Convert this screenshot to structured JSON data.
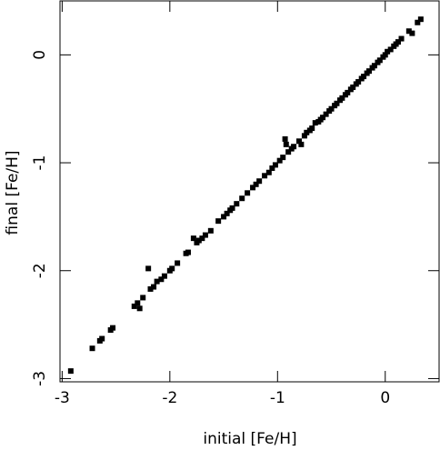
{
  "chart_data": {
    "type": "scatter",
    "xlabel": "initial [Fe/H]",
    "ylabel": "final [Fe/H]",
    "color": "#000000",
    "xlim": [
      -3.02,
      0.5
    ],
    "ylim": [
      -3.03,
      0.5
    ],
    "xticks": [
      -3,
      -2,
      -1,
      0
    ],
    "yticks": [
      -3,
      -2,
      -1,
      0
    ],
    "x": [
      -2.92,
      -2.72,
      -2.65,
      -2.63,
      -2.55,
      -2.53,
      -2.33,
      -2.3,
      -2.28,
      -2.25,
      -2.2,
      -2.18,
      -2.15,
      -2.12,
      -2.08,
      -2.05,
      -2.0,
      -1.98,
      -1.93,
      -1.85,
      -1.83,
      -1.78,
      -1.75,
      -1.73,
      -1.7,
      -1.67,
      -1.62,
      -1.55,
      -1.5,
      -1.47,
      -1.44,
      -1.42,
      -1.38,
      -1.33,
      -1.28,
      -1.23,
      -1.2,
      -1.17,
      -1.12,
      -1.08,
      -1.05,
      -1.02,
      -0.98,
      -0.95,
      -0.93,
      -0.92,
      -0.9,
      -0.87,
      -0.85,
      -0.8,
      -0.78,
      -0.75,
      -0.73,
      -0.7,
      -0.68,
      -0.65,
      -0.62,
      -0.6,
      -0.58,
      -0.55,
      -0.52,
      -0.5,
      -0.47,
      -0.45,
      -0.42,
      -0.4,
      -0.37,
      -0.35,
      -0.32,
      -0.3,
      -0.27,
      -0.25,
      -0.22,
      -0.2,
      -0.17,
      -0.15,
      -0.12,
      -0.1,
      -0.07,
      -0.05,
      -0.02,
      0,
      0.02,
      0.05,
      0.08,
      0.1,
      0.12,
      0.15,
      0.22,
      0.25,
      0.3,
      0.33
    ],
    "values": [
      -2.93,
      -2.72,
      -2.65,
      -2.63,
      -2.55,
      -2.53,
      -2.33,
      -2.3,
      -2.35,
      -2.25,
      -1.98,
      -2.17,
      -2.15,
      -2.1,
      -2.08,
      -2.05,
      -2.0,
      -1.98,
      -1.93,
      -1.84,
      -1.83,
      -1.7,
      -1.74,
      -1.72,
      -1.7,
      -1.67,
      -1.63,
      -1.54,
      -1.5,
      -1.47,
      -1.44,
      -1.42,
      -1.38,
      -1.33,
      -1.28,
      -1.23,
      -1.2,
      -1.17,
      -1.12,
      -1.09,
      -1.05,
      -1.02,
      -0.98,
      -0.95,
      -0.78,
      -0.83,
      -0.9,
      -0.87,
      -0.85,
      -0.8,
      -0.83,
      -0.75,
      -0.72,
      -0.7,
      -0.68,
      -0.63,
      -0.62,
      -0.6,
      -0.58,
      -0.55,
      -0.52,
      -0.5,
      -0.47,
      -0.45,
      -0.42,
      -0.4,
      -0.37,
      -0.35,
      -0.32,
      -0.3,
      -0.27,
      -0.25,
      -0.22,
      -0.2,
      -0.17,
      -0.15,
      -0.12,
      -0.1,
      -0.07,
      -0.05,
      -0.02,
      0,
      0.03,
      0.05,
      0.08,
      0.1,
      0.12,
      0.15,
      0.22,
      0.2,
      0.3,
      0.33
    ]
  }
}
